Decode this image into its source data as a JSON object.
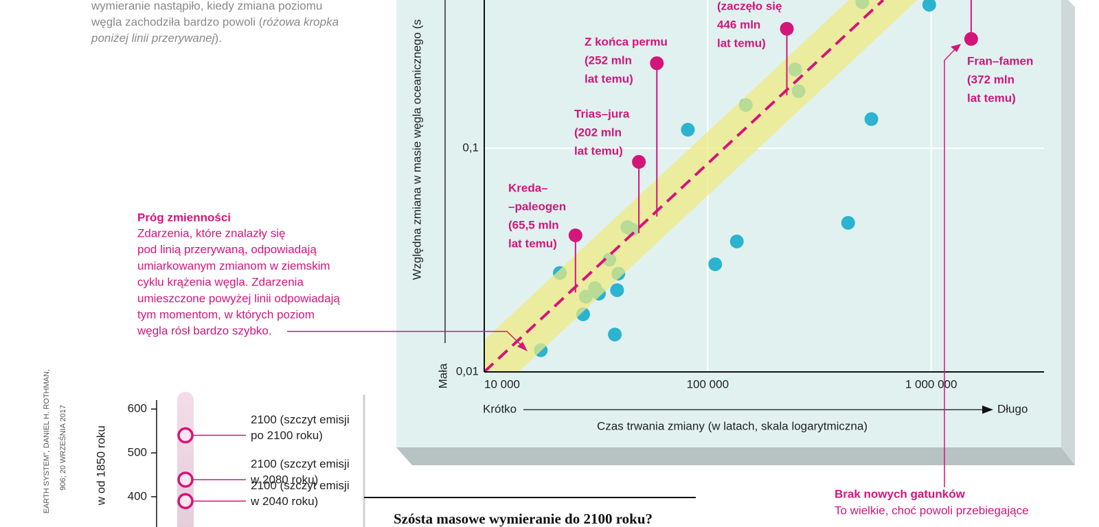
{
  "chart_data": [
    {
      "type": "scatter",
      "xlabel": "Czas trwania zmiany (w latach, skala logarytmiczna)",
      "ylabel": "Względna zmiana w masie węgla oceanicznego (s",
      "x_low": "Krótko",
      "x_high": "Długo",
      "y_low": "Mała",
      "xscale": "log",
      "yscale": "log",
      "xlim": [
        10000,
        3200000
      ],
      "ylim": [
        0.01,
        0.46
      ],
      "xticks": [
        {
          "value": 10000,
          "label": "10 000"
        },
        {
          "value": 100000,
          "label": "100 000"
        },
        {
          "value": 1000000,
          "label": "1 000 000"
        }
      ],
      "yticks": [
        {
          "value": 0.01,
          "label": "0,01"
        },
        {
          "value": 0.1,
          "label": "0,1"
        }
      ],
      "grid": true,
      "points": {
        "color": "#2bb3d0",
        "x": [
          21800,
          38400,
          81500,
          108000,
          135000,
          425000,
          540000,
          980000,
          17900,
          27700,
          28500,
          31300,
          32600,
          36300,
          39800,
          39300,
          43700,
          45900,
          148000,
          246000,
          255000,
          492000
        ],
        "y": [
          0.0277,
          0.0147,
          0.121,
          0.0303,
          0.0383,
          0.0464,
          0.135,
          0.438,
          0.0125,
          0.0181,
          0.0217,
          0.0237,
          0.0224,
          0.0318,
          0.0275,
          0.0232,
          0.0444,
          0.0432,
          0.156,
          0.225,
          0.18,
          0.45
        ]
      },
      "threshold": {
        "color": "#d4157a",
        "band_color": "#eeea7e",
        "x": [
          10000,
          610000
        ],
        "y": [
          0.01,
          0.46
        ]
      },
      "events": {
        "color": "#d4157a",
        "x": [
          25600,
          49200,
          59200,
          226000,
          1510000
        ],
        "y": [
          0.0408,
          0.0869,
          0.24,
          0.342,
          0.308
        ],
        "labels": [
          [
            "Kreda–",
            "–paleogen",
            "(65,5 mln",
            "lat temu)"
          ],
          [
            "Trias–jura",
            "(202 mln",
            "lat temu)"
          ],
          [
            "Z końca permu",
            "(252 mln",
            "lat temu)"
          ],
          [
            "(zaczęło się",
            "446 mln",
            "lat temu)"
          ],
          [
            "Fran–famen",
            "(372 mln",
            "lat temu)"
          ]
        ]
      },
      "intro": [
        [
          "wymieranie nastąpiło, kiedy zmiana poziomu"
        ],
        [
          "węgla zachodziła bardzo powoli (",
          "różowa kropka"
        ],
        [
          "poniżej linii przerywanej",
          ")."
        ]
      ],
      "threshold_note": {
        "title": "Próg zmienności",
        "lines": [
          "Zdarzenia, które znalazły się",
          "pod linią przerywaną, odpowiadają",
          "umiarkowanym zmianom w ziemskim",
          "cyklu krążenia węgla. Zdarzenia",
          "umieszczone powyżej linii odpowiadają",
          "tym momentom, w których poziom",
          "węgla rósł bardzo szybko."
        ]
      },
      "species_note": {
        "title": "Brak nowych gatunków",
        "lines": [
          "To wielkie, choć powoli przebiegające"
        ]
      },
      "credits": [
        "EARTH SYSTEM”, DANIEL H. ROTHMAN,",
        "906; 20 WRZEŚNIA 2017"
      ]
    },
    {
      "type": "dot",
      "title": "Szósta masowe wymieranie do 2100 roku?",
      "ylabel": "w od 1850 roku",
      "ylim": [
        331,
        633
      ],
      "yticks": [
        400,
        500,
        600
      ],
      "color": "#d4157a",
      "values": [
        540,
        439,
        390
      ],
      "labels": [
        [
          "2100 (szczyt emisji",
          "po 2100 roku)"
        ],
        [
          "2100 (szczyt emisji",
          "w 2080 roku)"
        ],
        [
          "2100 (szczyt emisji",
          "w 2040 roku)"
        ]
      ]
    }
  ]
}
